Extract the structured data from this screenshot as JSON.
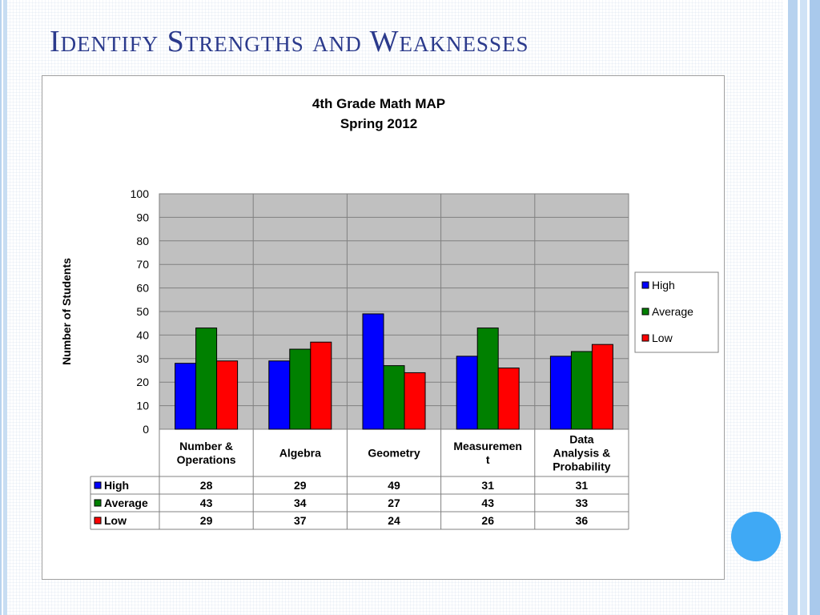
{
  "slide": {
    "title": "Identify Strengths and Weaknesses"
  },
  "chart_data": {
    "type": "bar",
    "title": "4th Grade Math MAP",
    "subtitle": "Spring 2012",
    "xlabel": "",
    "ylabel": "Number of Students",
    "ylim": [
      0,
      100
    ],
    "yticks": [
      0,
      10,
      20,
      30,
      40,
      50,
      60,
      70,
      80,
      90,
      100
    ],
    "categories": [
      [
        "Number &",
        "Operations"
      ],
      [
        "Algebra"
      ],
      [
        "Geometry"
      ],
      [
        "Measuremen",
        "t"
      ],
      [
        "Data",
        "Analysis &",
        "Probability"
      ]
    ],
    "series": [
      {
        "name": "High",
        "color": "#0000ff",
        "values": [
          28,
          29,
          49,
          31,
          31
        ]
      },
      {
        "name": "Average",
        "color": "#008000",
        "values": [
          43,
          34,
          27,
          43,
          33
        ]
      },
      {
        "name": "Low",
        "color": "#ff0000",
        "values": [
          29,
          37,
          24,
          26,
          36
        ]
      }
    ],
    "grid": true,
    "plot_background": "#c0c0c0",
    "legend_position": "right",
    "data_table": true
  }
}
